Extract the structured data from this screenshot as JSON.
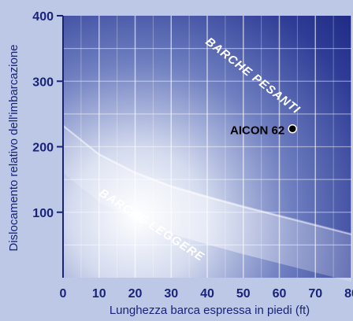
{
  "chart_data": {
    "type": "scatter",
    "title": "",
    "xlabel": "Lunghezza barca espressa in piedi (ft)",
    "ylabel": "Dislocamento relativo dell'imbarcazione",
    "xlim": [
      0,
      80
    ],
    "ylim": [
      0,
      400
    ],
    "xticks": [
      0,
      10,
      20,
      30,
      40,
      50,
      60,
      70,
      80
    ],
    "yticks": [
      100,
      200,
      300,
      400
    ],
    "grid": true,
    "series": [
      {
        "points": [
          {
            "x": 63,
            "y": 225,
            "label": "AICON 62"
          }
        ]
      }
    ],
    "boundary_curve": {
      "x": [
        0,
        10,
        20,
        30,
        40,
        50,
        60,
        70,
        80
      ],
      "y": [
        232,
        188,
        160,
        139,
        123,
        108,
        94,
        80,
        66
      ]
    },
    "regions": [
      {
        "label": "BARCHE PESANTI",
        "side": "above-curve"
      },
      {
        "label": "BARCHE LEGGERE",
        "side": "below-curve"
      }
    ],
    "colors": {
      "background": "#bcc8e6",
      "plot_dark": "#1a2680",
      "plot_light": "#ffffff",
      "text_dark": "#1a2378",
      "text_light": "#ffffff",
      "marker": "#000000"
    }
  }
}
